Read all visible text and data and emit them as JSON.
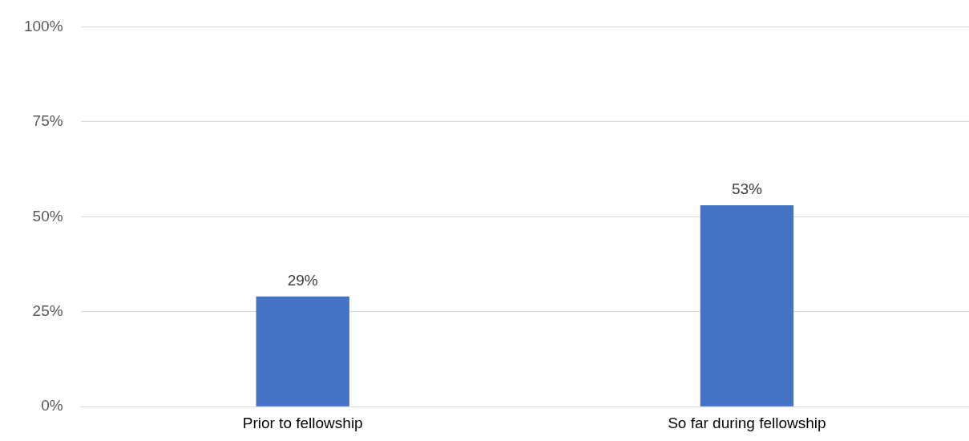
{
  "chart_data": {
    "type": "bar",
    "categories": [
      "Prior to fellowship",
      "So far during fellowship"
    ],
    "values": [
      29,
      53
    ],
    "value_labels": [
      "29%",
      "53%"
    ],
    "color": "#4472c4",
    "ylim": [
      0,
      100
    ],
    "yticks": [
      {
        "value": 0,
        "label": "0%"
      },
      {
        "value": 25,
        "label": "25%"
      },
      {
        "value": 50,
        "label": "50%"
      },
      {
        "value": 75,
        "label": "75%"
      },
      {
        "value": 100,
        "label": "100%"
      }
    ],
    "grid": "y"
  }
}
